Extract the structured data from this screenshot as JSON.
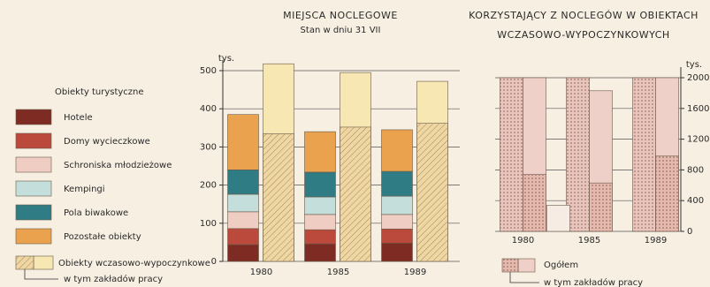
{
  "chart_data": [
    {
      "type": "bar",
      "title": "MIEJSCA NOCLEGOWE",
      "subtitle": "Stan w dniu 31 VII",
      "y_label": "tys.",
      "legend_title": "Obiekty turystyczne",
      "categories": [
        "1980",
        "1985",
        "1989"
      ],
      "ylim": [
        0,
        500
      ],
      "yticks": [
        0,
        100,
        200,
        300,
        400,
        500
      ],
      "grid": true,
      "series": [
        {
          "name": "Hotele",
          "color": "#7d2b23",
          "values": [
            44,
            46,
            48
          ],
          "bar_group": 0,
          "stacked": true
        },
        {
          "name": "Domy wycieczkowe",
          "color": "#bb4a3c",
          "values": [
            42,
            37,
            37
          ],
          "bar_group": 0,
          "stacked": true
        },
        {
          "name": "Schroniska młodzieżowe",
          "color": "#f0cdc2",
          "values": [
            44,
            40,
            38
          ],
          "bar_group": 0,
          "stacked": true
        },
        {
          "name": "Kempingi",
          "color": "#c3dedb",
          "values": [
            46,
            46,
            48
          ],
          "bar_group": 0,
          "stacked": true
        },
        {
          "name": "Pola biwakowe",
          "color": "#2f7c84",
          "values": [
            64,
            65,
            65
          ],
          "bar_group": 0,
          "stacked": true
        },
        {
          "name": "Pozostałe obiekty",
          "color": "#eaa24e",
          "values": [
            145,
            106,
            109
          ],
          "bar_group": 0,
          "stacked": true
        },
        {
          "name": "Obiekty wczasowo-wypoczynkowe",
          "color": "#f7e7b2",
          "values": [
            518,
            495,
            472
          ],
          "bar_group": 1
        },
        {
          "name": "w tym zakładów pracy",
          "color": "#eed7a2",
          "values": [
            335,
            352,
            362
          ],
          "bar_group": 1,
          "overlay": true,
          "hatch": "diagonal"
        }
      ]
    },
    {
      "type": "bar",
      "title": [
        "KORZYSTAJĄCY Z NOCLEGÓW W OBIEKTACH",
        "WCZASOWO-WYPOCZYNKOWYCH"
      ],
      "y_label": "tys.",
      "categories": [
        "1980",
        "1985",
        "1989"
      ],
      "ylim": [
        0,
        2000
      ],
      "yticks": [
        0,
        400,
        800,
        1200,
        1600,
        2000
      ],
      "grid": true,
      "series": [
        {
          "color": "#e9c6bd",
          "values": [
            2000,
            2000,
            2000
          ],
          "bar_group": 0,
          "hatch": "cross"
        },
        {
          "name": "Ogółem",
          "color": "#efd0c8",
          "values": [
            2000,
            1830,
            2000
          ],
          "bar_group": 1
        },
        {
          "name": "w tym zakładów pracy",
          "color": "#e4b9ae",
          "values": [
            740,
            630,
            980
          ],
          "bar_group": 1,
          "overlay": true,
          "hatch": "cross"
        },
        {
          "color": "#f7ece4",
          "values": [
            340,
            null,
            null
          ],
          "bar_group": 2
        }
      ]
    }
  ]
}
